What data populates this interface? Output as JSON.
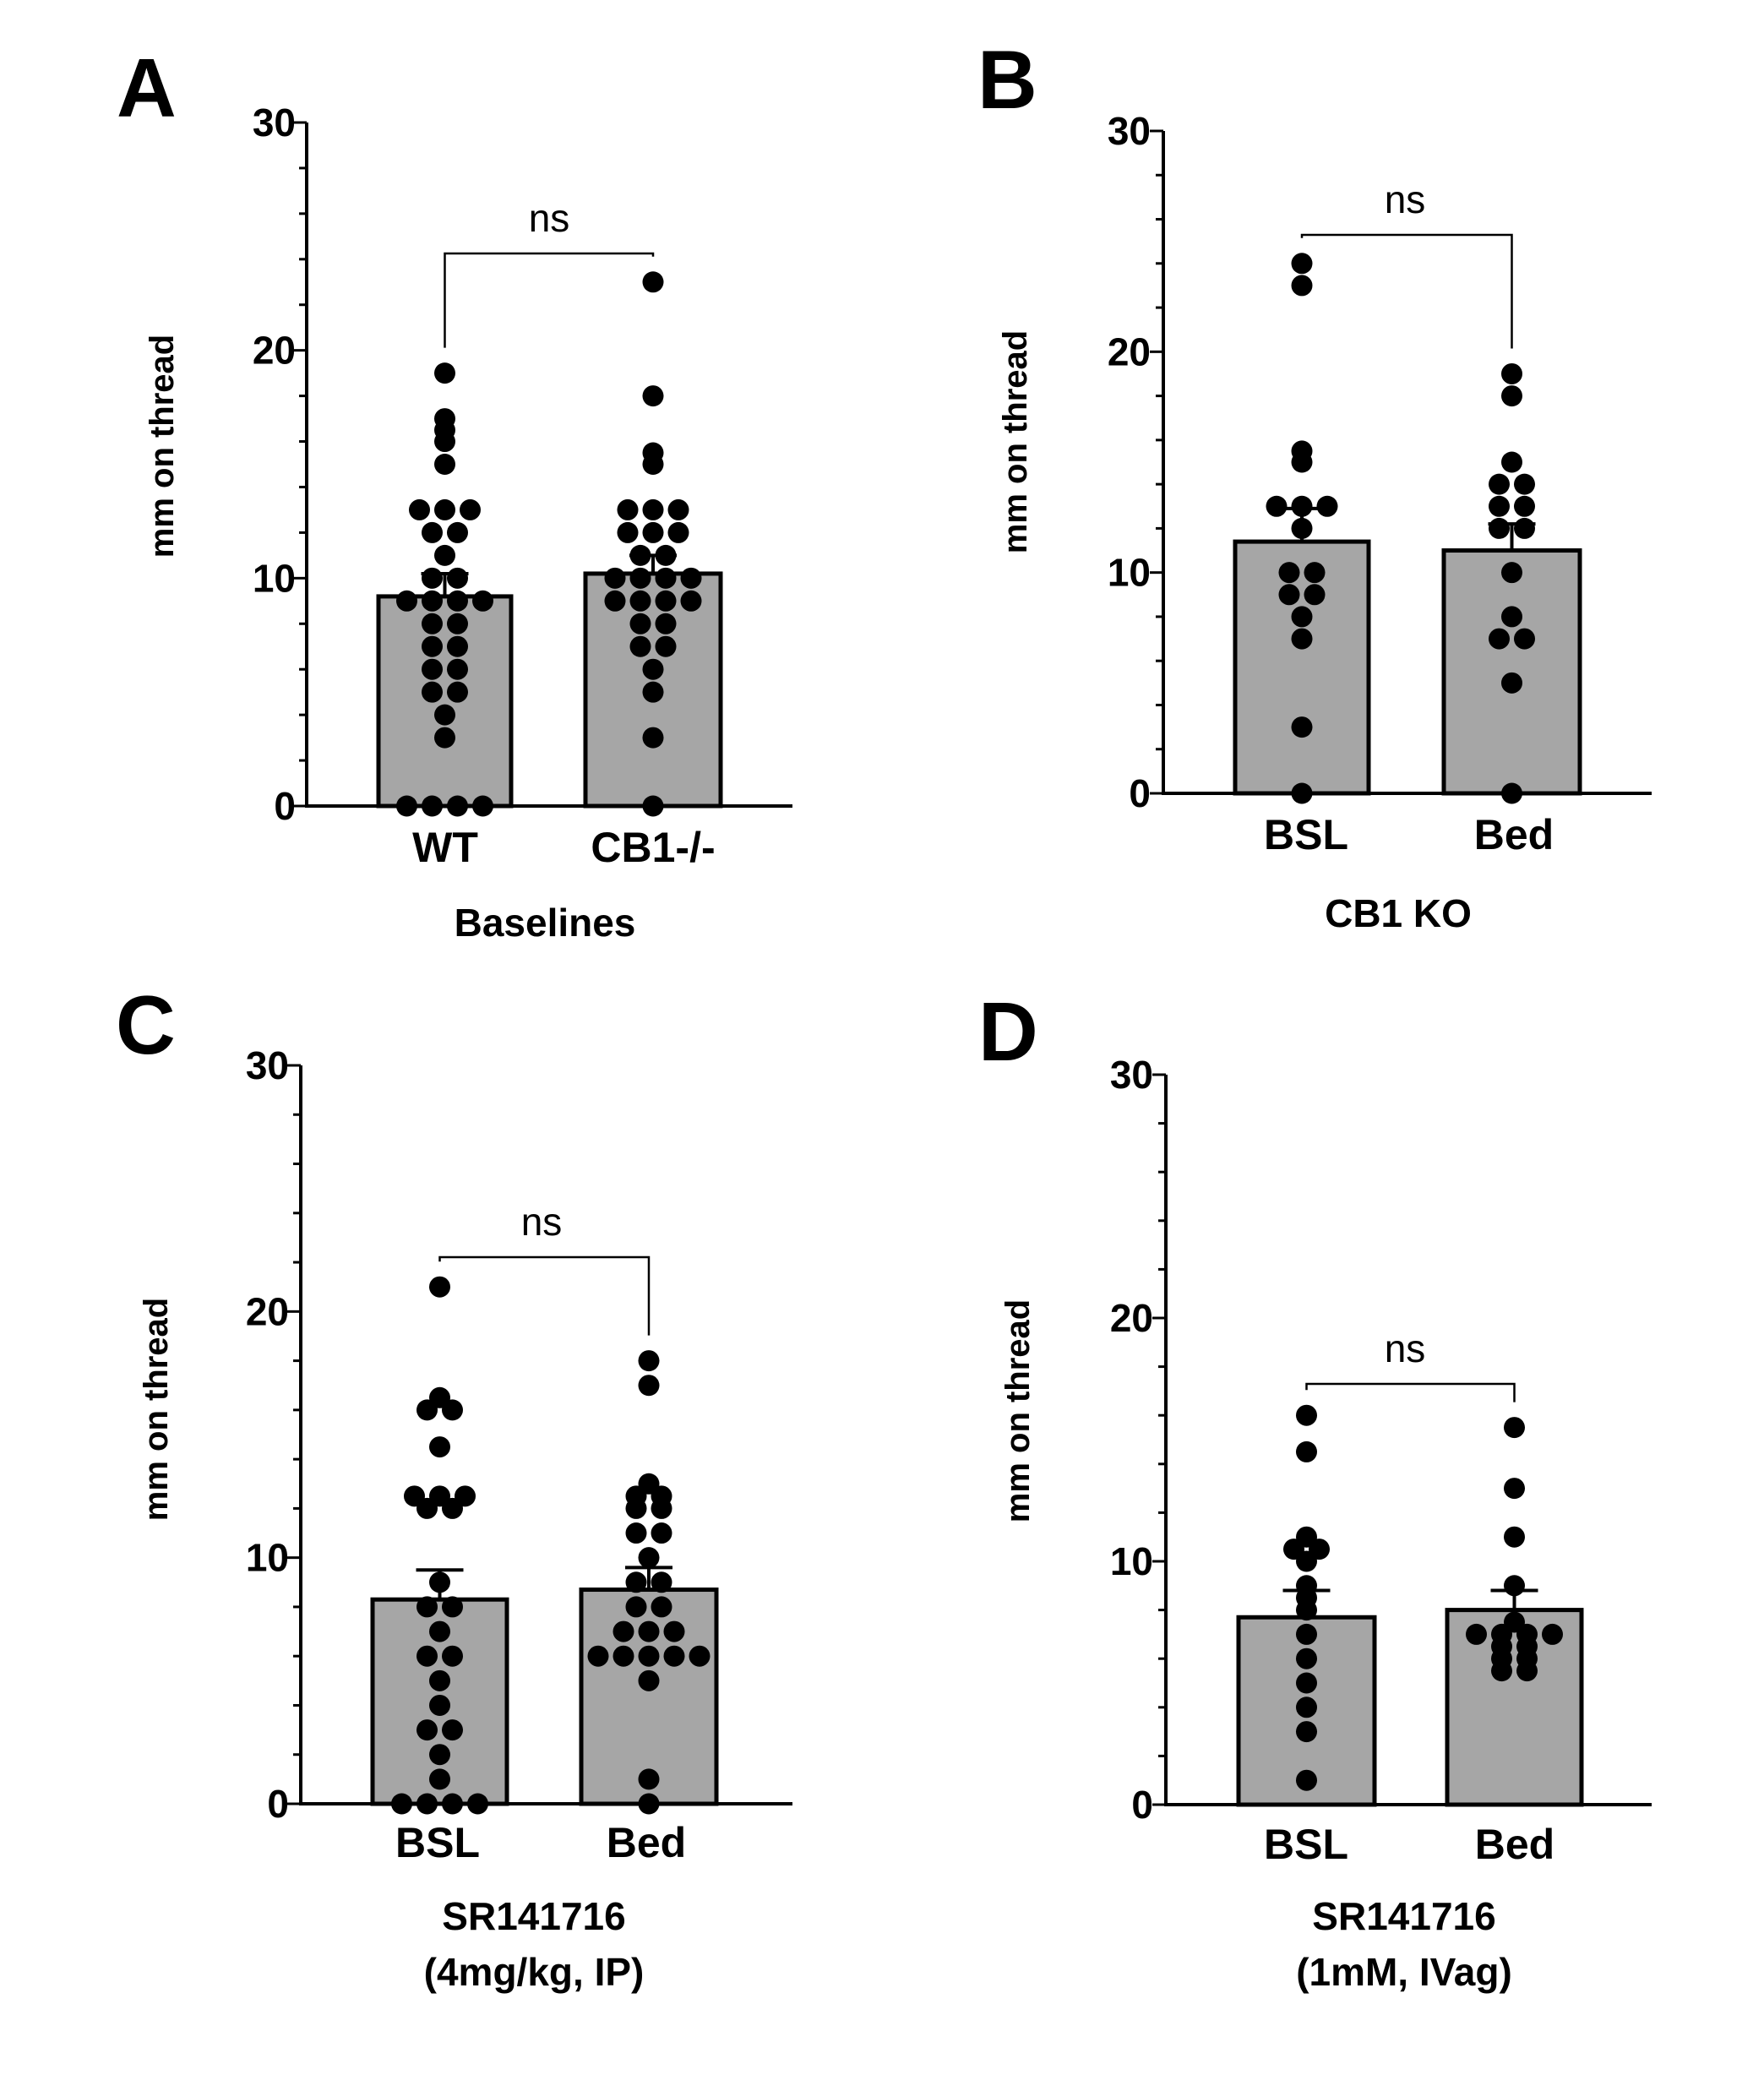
{
  "chart_data": [
    {
      "panel": "A",
      "type": "bar",
      "ylabel": "mm on thread",
      "xlabel": [
        "Baselines"
      ],
      "ylim": [
        0,
        30
      ],
      "yticks": [
        0,
        10,
        20,
        30
      ],
      "categories": [
        "WT",
        "CB1-/-"
      ],
      "values": [
        9.2,
        10.2
      ],
      "sem": [
        1.0,
        0.8
      ],
      "significance": "ns",
      "points": [
        [
          0,
          0,
          0,
          0,
          3,
          4,
          5,
          5,
          6,
          6,
          7,
          7,
          8,
          8,
          9,
          9,
          9,
          9,
          10,
          10,
          11,
          12,
          12,
          13,
          13,
          13,
          15,
          16,
          16.5,
          17,
          19
        ],
        [
          0,
          3,
          5,
          6,
          7,
          7,
          8,
          8,
          9,
          9,
          9,
          9,
          10,
          10,
          10,
          10,
          11,
          11,
          12,
          12,
          12,
          13,
          13,
          13,
          15,
          15.5,
          18,
          23
        ]
      ]
    },
    {
      "panel": "B",
      "type": "bar",
      "ylabel": "mm on thread",
      "xlabel": [
        "CB1 KO"
      ],
      "ylim": [
        0,
        30
      ],
      "yticks": [
        0,
        10,
        20,
        30
      ],
      "categories": [
        "BSL",
        "Bed"
      ],
      "values": [
        11.4,
        11.0
      ],
      "sem": [
        1.5,
        1.2
      ],
      "significance": "ns",
      "points": [
        [
          0,
          3,
          7,
          8,
          9,
          9,
          10,
          10,
          12,
          13,
          13,
          13,
          15,
          15.5,
          23,
          24
        ],
        [
          0,
          5,
          7,
          7,
          8,
          10,
          12,
          12,
          13,
          13,
          14,
          14,
          15,
          18,
          19
        ]
      ]
    },
    {
      "panel": "C",
      "type": "bar",
      "ylabel": "mm on thread",
      "xlabel": [
        "SR141716",
        "(4mg/kg, IP)"
      ],
      "ylim": [
        0,
        30
      ],
      "yticks": [
        0,
        10,
        20,
        30
      ],
      "categories": [
        "BSL",
        "Bed"
      ],
      "values": [
        8.3,
        8.7
      ],
      "sem": [
        1.2,
        0.9
      ],
      "significance": "ns",
      "points": [
        [
          0,
          0,
          0,
          0,
          1,
          2,
          3,
          3,
          4,
          5,
          6,
          6,
          7,
          8,
          8,
          9,
          12,
          12,
          12.5,
          12.5,
          12.5,
          14.5,
          16,
          16,
          16.5,
          21
        ],
        [
          0,
          1,
          5,
          6,
          6,
          6,
          6,
          6,
          7,
          7,
          7,
          8,
          8,
          9,
          9,
          10,
          11,
          11,
          12,
          12,
          12.5,
          12.5,
          13,
          17,
          18
        ]
      ]
    },
    {
      "panel": "D",
      "type": "bar",
      "ylabel": "mm on thread",
      "xlabel": [
        "SR141716",
        "(1mM, IVag)"
      ],
      "ylim": [
        0,
        30
      ],
      "yticks": [
        0,
        10,
        20,
        30
      ],
      "categories": [
        "BSL",
        "Bed"
      ],
      "values": [
        7.7,
        8.0
      ],
      "sem": [
        1.1,
        0.8
      ],
      "significance": "ns",
      "points": [
        [
          1,
          3,
          4,
          5,
          6,
          7,
          8,
          8.5,
          9,
          10,
          10.5,
          10.5,
          11,
          14.5,
          16
        ],
        [
          5.5,
          5.5,
          6,
          6,
          6.5,
          6.5,
          7,
          7,
          7,
          7,
          7.5,
          9,
          11,
          13,
          15.5
        ]
      ]
    }
  ]
}
